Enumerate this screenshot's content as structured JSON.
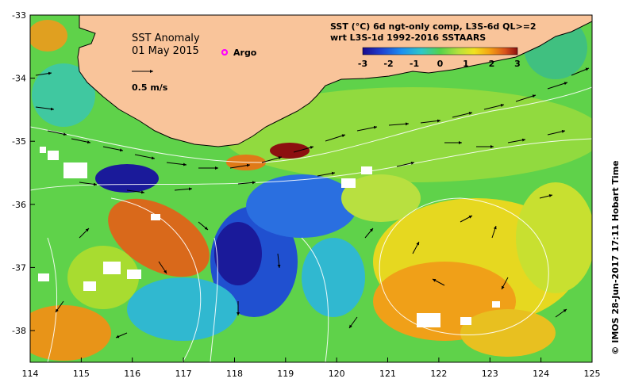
{
  "map": {
    "title": "SST Anomaly",
    "date": "01 May 2015",
    "argo_label": "Argo",
    "vector_scale_label": "0.5 m/s",
    "product_line1": "SST (°C) 6d ngt-only comp, L3S-6d QL>=2",
    "product_line2": "wrt L3S-1d 1992-2016 SSTAARS",
    "credit": "© IMOS 28-Jun-2017 17:11 Hobart Time",
    "colors": {
      "land": "#f9c49a",
      "missing": "#ffffff",
      "argo_marker": "#ff00ff",
      "contour": "#ffffff"
    }
  },
  "colorbar": {
    "ticks": [
      "-3",
      "-2",
      "-1",
      "0",
      "1",
      "2",
      "3"
    ],
    "colors": [
      "#1a0a8c",
      "#1f3fd0",
      "#1d8ff0",
      "#2ec7c8",
      "#55d24a",
      "#b6e13c",
      "#f1e21f",
      "#f5a314",
      "#d9541b",
      "#8c0f10"
    ]
  },
  "axes": {
    "x_ticks": [
      "114",
      "115",
      "116",
      "117",
      "118",
      "119",
      "120",
      "121",
      "122",
      "123",
      "124",
      "125"
    ],
    "y_ticks": [
      "-33",
      "-34",
      "-35",
      "-36",
      "-37",
      "-38"
    ]
  }
}
